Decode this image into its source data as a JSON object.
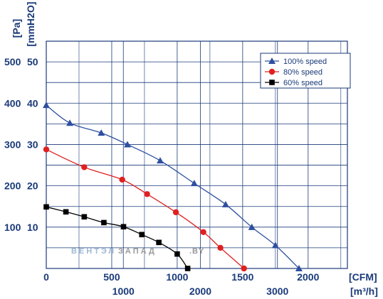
{
  "chart_data": {
    "type": "line",
    "y_axis_label_primary": "[Pa]",
    "y_axis_label_secondary": "[mmH2O]",
    "x_axis_label_primary": "[CFM]",
    "x_axis_label_secondary": "[m³/h]",
    "y_ticks_pa": [
      "100",
      "200",
      "300",
      "400",
      "500"
    ],
    "y_ticks_mm": [
      "10",
      "20",
      "30",
      "40",
      "50"
    ],
    "y_tick_values": [
      100,
      200,
      300,
      400,
      500
    ],
    "x_ticks_cfm": [
      "0",
      "500",
      "1000",
      "1500",
      "2000"
    ],
    "x_tick_values_cfm": [
      0,
      500,
      1000,
      1500,
      2000
    ],
    "x_ticks_m3h": [
      "1000",
      "2000",
      "3000"
    ],
    "x_tick_values_m3h": [
      1000,
      2000,
      3000
    ],
    "xlim_cfm": [
      0,
      2300
    ],
    "ylim_pa": [
      0,
      550
    ],
    "grid": true,
    "legend_position": "top-right",
    "series": [
      {
        "name": "100%  speed",
        "color": "#2d4fa0",
        "marker": "triangle",
        "points": [
          [
            0,
            395
          ],
          [
            180,
            352
          ],
          [
            420,
            328
          ],
          [
            620,
            300
          ],
          [
            870,
            261
          ],
          [
            1130,
            206
          ],
          [
            1370,
            155
          ],
          [
            1570,
            100
          ],
          [
            1750,
            56
          ],
          [
            1930,
            0
          ]
        ]
      },
      {
        "name": "80%  speed",
        "color": "#e02020",
        "marker": "circle",
        "points": [
          [
            0,
            288
          ],
          [
            290,
            245
          ],
          [
            580,
            215
          ],
          [
            770,
            180
          ],
          [
            990,
            136
          ],
          [
            1200,
            88
          ],
          [
            1330,
            50
          ],
          [
            1510,
            0
          ]
        ]
      },
      {
        "name": "60%  speed",
        "color": "#000000",
        "marker": "square",
        "points": [
          [
            0,
            149
          ],
          [
            150,
            137
          ],
          [
            290,
            125
          ],
          [
            440,
            111
          ],
          [
            590,
            101
          ],
          [
            730,
            82
          ],
          [
            860,
            63
          ],
          [
            1000,
            35
          ],
          [
            1080,
            0
          ]
        ]
      }
    ]
  },
  "watermark": {
    "part1": "ВЕНТЭЛ",
    "part2": "ЗАПАД",
    "part3": ".BY"
  }
}
